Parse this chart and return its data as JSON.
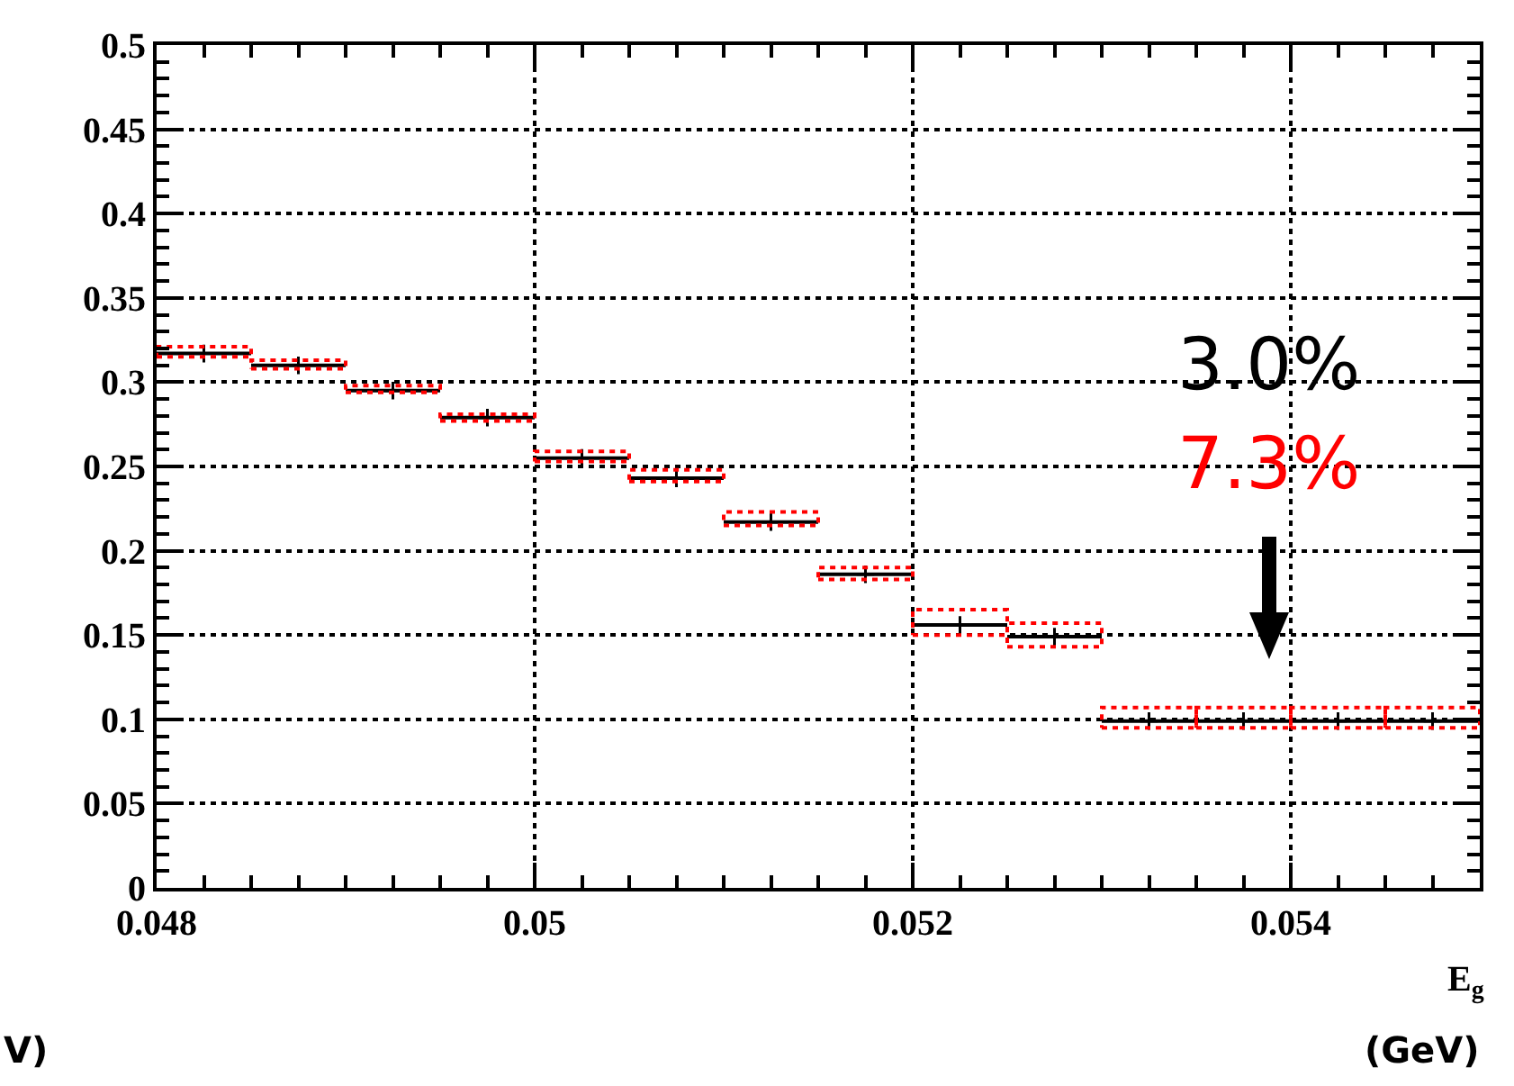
{
  "chart_data": {
    "type": "scatter",
    "xlabel": "E$_{g}$",
    "x": [
      0.04825,
      0.04875,
      0.04925,
      0.04975,
      0.05025,
      0.05075,
      0.05125,
      0.05175,
      0.05225,
      0.05275,
      0.05325,
      0.05375,
      0.05425,
      0.05475
    ],
    "series": [
      {
        "color": "#000000",
        "xerrors": [
          0.00025,
          0.00025,
          0.00025,
          0.00025,
          0.00025,
          0.00025,
          0.00025,
          0.00025,
          0.00025,
          0.00025,
          0.00025,
          0.00025,
          0.00025,
          0.00025
        ],
        "values": [
          0.317,
          0.31,
          0.295,
          0.279,
          0.255,
          0.243,
          0.217,
          0.186,
          0.156,
          0.149,
          0.099,
          0.099,
          0.099,
          0.099
        ],
        "errors": [
          0.002,
          0.002,
          0.002,
          0.002,
          0.002,
          0.002,
          0.002,
          0.002,
          0.004,
          0.004,
          0.002,
          0.002,
          0.002,
          0.002
        ]
      },
      {
        "type": "bar",
        "color": "#ff0000",
        "line_style": "dotted",
        "base": [
          0.315,
          0.308,
          0.294,
          0.277,
          0.253,
          0.241,
          0.215,
          0.183,
          0.15,
          0.143,
          0.095,
          0.095,
          0.095,
          0.095
        ],
        "values": [
          0.006,
          0.005,
          0.004,
          0.004,
          0.006,
          0.007,
          0.008,
          0.007,
          0.015,
          0.014,
          0.012,
          0.012,
          0.012,
          0.012
        ]
      }
    ],
    "marker": "cross",
    "xlim": [
      0.048,
      0.055
    ],
    "xticks": [
      0.048,
      0.05,
      0.052,
      0.054
    ],
    "ylim": [
      0,
      0.5
    ],
    "yticks": [
      0,
      0.05,
      0.1,
      0.15,
      0.2,
      0.25,
      0.3,
      0.35,
      0.4,
      0.45,
      0.5
    ],
    "grid": true,
    "annotations": [
      "3.0%",
      "7.3%",
      "(GeV)",
      "V)"
    ]
  }
}
